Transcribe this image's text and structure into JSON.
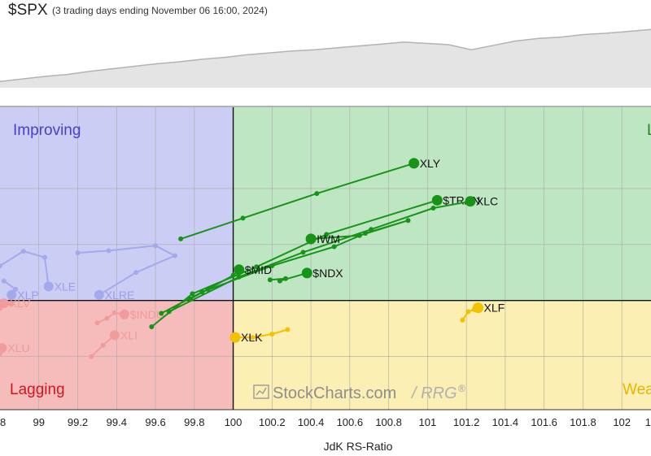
{
  "header": {
    "title": "$SPX",
    "subtitle": "(3 trading days ending November 06 16:00, 2024)"
  },
  "colors": {
    "improving": "#cbcdf5",
    "leading": "#bfe6c3",
    "lagging": "#f6bcbc",
    "weakening": "#fbefb4",
    "improving_label": "#4a3fc7",
    "leading_label": "#1e8a1e",
    "lagging_label": "#d0161e",
    "weakening_label": "#e8b400",
    "green_series": "#179417",
    "yellow_series": "#f2c200",
    "faded_blue": "#a4a9ec",
    "faded_red": "#f19c9c",
    "price_fill": "#e4e4e4",
    "price_line": "#b3b3b3"
  },
  "quadrants": {
    "improving": "Improving",
    "leading": "L",
    "lagging": "Lagging",
    "weakening": "Wea"
  },
  "watermark": {
    "text": "StockCharts.com",
    "suffix": "/ RRG",
    "reg": "®"
  },
  "chart_data": {
    "type": "scatter",
    "xlabel": "JdK RS-Ratio",
    "xlim": [
      98.8,
      102.15
    ],
    "ylim": [
      -1.95,
      3.45
    ],
    "x_ticks": [
      99,
      99.2,
      99.4,
      99.6,
      99.8,
      100,
      100.2,
      100.4,
      100.6,
      100.8,
      101,
      101.2,
      101.4,
      101.6,
      101.8,
      102
    ],
    "y_grid": [
      -1,
      1,
      2
    ],
    "x_edge_labels": [
      "8",
      "1"
    ],
    "price_line": {
      "series": "$SPX",
      "values": [
        0.1,
        0.14,
        0.18,
        0.21,
        0.26,
        0.3,
        0.34,
        0.38,
        0.41,
        0.45,
        0.48,
        0.52,
        0.55,
        0.58,
        0.6,
        0.63,
        0.66,
        0.69,
        0.72,
        0.7,
        0.68,
        0.6,
        0.67,
        0.74,
        0.78,
        0.8,
        0.84,
        0.86,
        0.89,
        0.92
      ]
    },
    "series": [
      {
        "name": "XLY",
        "style": "green",
        "points": [
          [
            99.73,
            1.1
          ],
          [
            100.05,
            1.47
          ],
          [
            100.43,
            1.91
          ],
          [
            100.93,
            2.45
          ]
        ]
      },
      {
        "name": "$TRAN",
        "style": "green",
        "points": [
          [
            99.58,
            -0.47
          ],
          [
            99.79,
            0.12
          ],
          [
            100.12,
            0.6
          ],
          [
            100.48,
            1.18
          ],
          [
            101.05,
            1.79
          ]
        ]
      },
      {
        "name": "XLC",
        "style": "green",
        "points": [
          [
            99.67,
            -0.2
          ],
          [
            100.03,
            0.42
          ],
          [
            100.36,
            0.86
          ],
          [
            100.71,
            1.27
          ],
          [
            101.03,
            1.65
          ],
          [
            101.22,
            1.77
          ]
        ]
      },
      {
        "name": "IWM",
        "style": "green",
        "points": [
          [
            99.63,
            -0.23
          ],
          [
            99.84,
            0.15
          ],
          [
            100.2,
            0.62
          ],
          [
            100.52,
            0.96
          ],
          [
            100.68,
            1.2
          ],
          [
            100.9,
            1.43
          ],
          [
            100.65,
            1.16
          ],
          [
            100.4,
            1.1
          ]
        ]
      },
      {
        "name": "$MID",
        "style": "green",
        "points": [
          [
            99.78,
            0.03
          ],
          [
            99.87,
            0.2
          ],
          [
            100.0,
            0.45
          ],
          [
            100.03,
            0.55
          ]
        ]
      },
      {
        "name": "$NDX",
        "style": "green",
        "points": [
          [
            100.19,
            0.37
          ],
          [
            100.27,
            0.39
          ],
          [
            100.24,
            0.35
          ],
          [
            100.38,
            0.49
          ]
        ]
      },
      {
        "name": "XLF",
        "style": "yellow",
        "points": [
          [
            101.18,
            -0.35
          ],
          [
            101.21,
            -0.2
          ],
          [
            101.24,
            -0.16
          ],
          [
            101.26,
            -0.13
          ]
        ]
      },
      {
        "name": "XLK",
        "style": "yellow",
        "points": [
          [
            100.28,
            -0.52
          ],
          [
            100.2,
            -0.6
          ],
          [
            100.1,
            -0.66
          ],
          [
            100.01,
            -0.66
          ]
        ]
      },
      {
        "name": "XLE",
        "style": "faded-blue",
        "points": [
          [
            98.8,
            0.62
          ],
          [
            98.92,
            0.88
          ],
          [
            99.03,
            0.77
          ],
          [
            99.05,
            0.25
          ]
        ]
      },
      {
        "name": "XLRE",
        "style": "faded-blue",
        "points": [
          [
            99.2,
            0.85
          ],
          [
            99.36,
            0.89
          ],
          [
            99.6,
            0.98
          ],
          [
            99.7,
            0.8
          ],
          [
            99.5,
            0.5
          ],
          [
            99.31,
            0.1
          ]
        ]
      },
      {
        "name": "XLP",
        "style": "faded-blue",
        "points": [
          [
            98.82,
            0.35
          ],
          [
            98.88,
            0.2
          ],
          [
            98.86,
            0.1
          ]
        ]
      },
      {
        "name": "$INDU",
        "style": "faded-red",
        "points": [
          [
            99.3,
            -0.4
          ],
          [
            99.35,
            -0.32
          ],
          [
            99.39,
            -0.22
          ],
          [
            99.44,
            -0.25
          ]
        ]
      },
      {
        "name": "XLV",
        "style": "faded-red",
        "points": [
          [
            98.8,
            -0.14
          ],
          [
            98.86,
            -0.06
          ],
          [
            98.82,
            -0.05
          ]
        ]
      },
      {
        "name": "XLI",
        "style": "faded-red",
        "points": [
          [
            99.27,
            -1.0
          ],
          [
            99.33,
            -0.8
          ],
          [
            99.39,
            -0.62
          ]
        ]
      },
      {
        "name": "XLU",
        "style": "faded-red",
        "points": [
          [
            98.8,
            -0.95
          ],
          [
            98.81,
            -0.85
          ]
        ]
      }
    ]
  }
}
